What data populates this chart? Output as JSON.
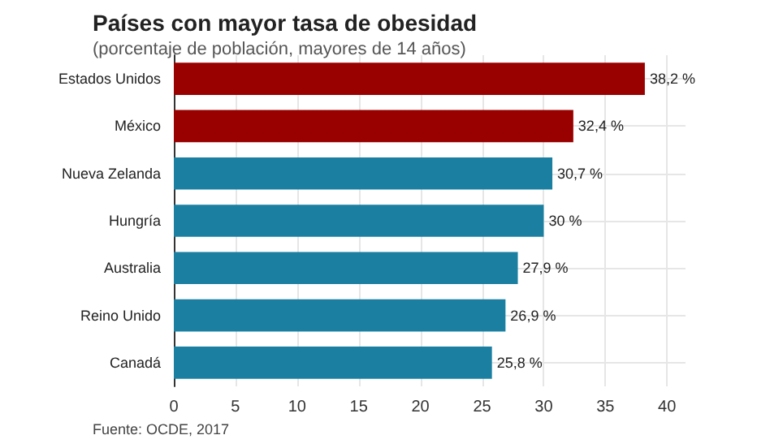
{
  "chart_data": {
    "type": "bar",
    "orientation": "horizontal",
    "title": "Países con mayor tasa de obesidad",
    "subtitle": "(porcentaje de población, mayores de 14 años)",
    "categories": [
      "Estados Unidos",
      "México",
      "Nueva Zelanda",
      "Hungría",
      "Australia",
      "Reino Unido",
      "Canadá"
    ],
    "values": [
      38.2,
      32.4,
      30.7,
      30,
      27.9,
      26.9,
      25.8
    ],
    "colors": [
      "#990000",
      "#990000",
      "#1a7fa0",
      "#1a7fa0",
      "#1a7fa0",
      "#1a7fa0",
      "#1a7fa0"
    ],
    "value_labels": [
      "38,2 %",
      "32,4 %",
      "30,7 %",
      "30 %",
      "27,9 %",
      "26,9 %",
      "25,8 %"
    ],
    "xlim": [
      0,
      41.5
    ],
    "xticks": [
      0,
      5,
      10,
      15,
      20,
      25,
      30,
      35,
      40
    ],
    "grid": true,
    "annotations": [
      "Fuente: OCDE, 2017"
    ]
  }
}
